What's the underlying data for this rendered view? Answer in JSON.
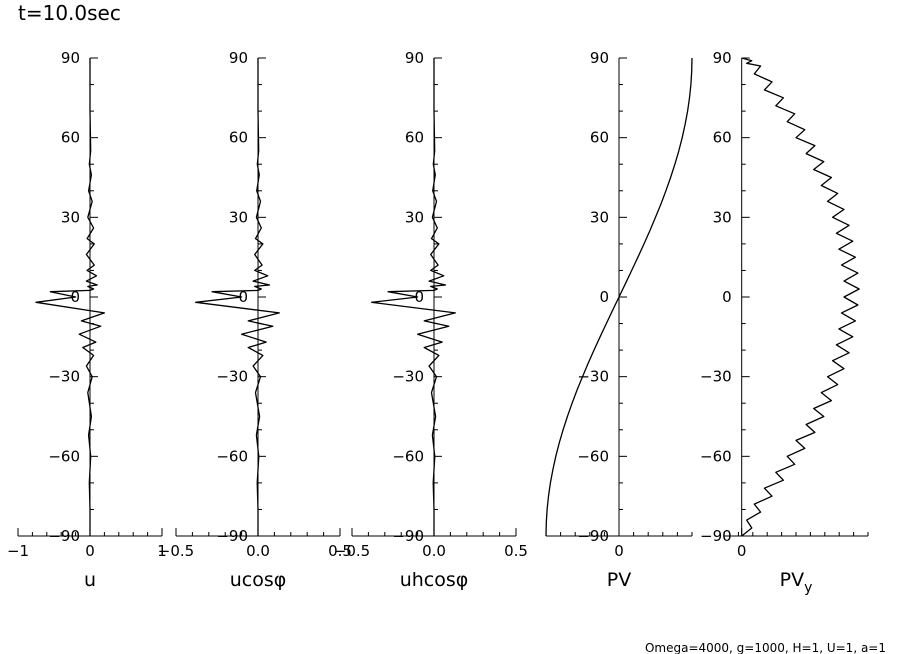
{
  "title": "t=10.0sec",
  "footer": "Omega=4000, g=1000, H=1, U=1, a=1",
  "chart_data": [
    {
      "type": "line",
      "xlabel": "u",
      "xticks": [
        -1,
        0,
        1
      ],
      "xtick_labels": [
        "−1",
        "0",
        "1"
      ],
      "xlim": [
        -1,
        1
      ],
      "ylim": [
        -90,
        90
      ],
      "yticks": [
        90,
        60,
        30,
        0,
        -30,
        -60,
        -90
      ],
      "ytick_labels": [
        "90",
        "60",
        "30",
        "0",
        "−30",
        "−60",
        "−90"
      ],
      "series": [
        {
          "x": [
            0,
            0,
            0.01,
            -0.01,
            0.02,
            -0.02,
            0.03,
            -0.03,
            0.05,
            -0.04,
            0.06,
            -0.05,
            0.06,
            -0.04,
            0.09,
            -0.05,
            0.1,
            -0.03,
            0.05,
            0,
            -0.55,
            -0.2,
            -0.75,
            0.2,
            -0.12,
            0.15,
            -0.15,
            0.08,
            -0.1,
            0.05,
            -0.05,
            0.03,
            -0.03,
            0.02,
            -0.02,
            0.01,
            -0.01,
            0,
            0
          ],
          "y": [
            90,
            70,
            55,
            50,
            46,
            40,
            36,
            30,
            26,
            22,
            20,
            16,
            12,
            10,
            8,
            6,
            4.5,
            4,
            3,
            2.5,
            2,
            0,
            -2,
            -6,
            -9,
            -11,
            -14,
            -17,
            -19,
            -22,
            -26,
            -30,
            -36,
            -45,
            -52,
            -60,
            -70,
            -80,
            -90
          ]
        }
      ]
    },
    {
      "type": "line",
      "xlabel": "ucosφ",
      "xticks": [
        -0.5,
        0,
        0.5
      ],
      "xtick_labels": [
        "−0.5",
        "0.0",
        "0.5"
      ],
      "xlim": [
        -0.5,
        0.5
      ],
      "ylim": [
        -90,
        90
      ],
      "yticks": [
        90,
        60,
        30,
        0,
        -30,
        -60,
        -90
      ],
      "ytick_labels": [
        "90",
        "60",
        "30",
        "0",
        "−30",
        "−60",
        "−90"
      ],
      "series": [
        {
          "x": [
            0,
            0,
            0.004,
            -0.004,
            0.008,
            -0.008,
            0.015,
            -0.01,
            0.02,
            -0.015,
            0.03,
            -0.02,
            0.025,
            -0.02,
            0.06,
            -0.03,
            0.07,
            -0.02,
            0.02,
            0,
            -0.28,
            -0.1,
            -0.38,
            0.13,
            -0.06,
            0.09,
            -0.1,
            0.05,
            -0.06,
            0.03,
            -0.03,
            0.015,
            -0.015,
            0.01,
            -0.01,
            0.005,
            -0.005,
            0,
            0
          ],
          "y": [
            90,
            70,
            55,
            50,
            46,
            40,
            36,
            30,
            26,
            22,
            20,
            16,
            12,
            10,
            8,
            6,
            4.5,
            4,
            3,
            2.5,
            2,
            0,
            -2,
            -6,
            -9,
            -11,
            -14,
            -17,
            -19,
            -22,
            -26,
            -30,
            -36,
            -45,
            -52,
            -60,
            -70,
            -80,
            -90
          ]
        }
      ]
    },
    {
      "type": "line",
      "xlabel": "uhcosφ",
      "xticks": [
        -0.5,
        0,
        0.5
      ],
      "xtick_labels": [
        "−0.5",
        "0.0",
        "0.5"
      ],
      "xlim": [
        -0.5,
        0.5
      ],
      "ylim": [
        -90,
        90
      ],
      "yticks": [
        90,
        60,
        30,
        0,
        -30,
        -60,
        -90
      ],
      "ytick_labels": [
        "90",
        "60",
        "30",
        "0",
        "−30",
        "−60",
        "−90"
      ],
      "series": [
        {
          "x": [
            0,
            0,
            0.004,
            -0.004,
            0.008,
            -0.008,
            0.015,
            -0.01,
            0.02,
            -0.015,
            0.03,
            -0.02,
            0.025,
            -0.02,
            0.06,
            -0.03,
            0.07,
            -0.02,
            0.02,
            0,
            -0.28,
            -0.1,
            -0.38,
            0.13,
            -0.06,
            0.09,
            -0.1,
            0.05,
            -0.06,
            0.03,
            -0.03,
            0.015,
            -0.015,
            0.01,
            -0.01,
            0.005,
            -0.005,
            0,
            0
          ],
          "y": [
            90,
            70,
            55,
            50,
            46,
            40,
            36,
            30,
            26,
            22,
            20,
            16,
            12,
            10,
            8,
            6,
            4.5,
            4,
            3,
            2.5,
            2,
            0,
            -2,
            -6,
            -9,
            -11,
            -14,
            -17,
            -19,
            -22,
            -26,
            -30,
            -36,
            -45,
            -52,
            -60,
            -70,
            -80,
            -90
          ]
        }
      ]
    },
    {
      "type": "line",
      "xlabel": "PV",
      "xticks": [
        0
      ],
      "xtick_labels": [
        "0"
      ],
      "xlim": [
        -1,
        1
      ],
      "ylim": [
        -90,
        90
      ],
      "yticks": [
        90,
        60,
        30,
        0,
        -30,
        -60,
        -90
      ],
      "ytick_labels": [
        "90",
        "60",
        "30",
        "0",
        "−30",
        "−60",
        "−90"
      ],
      "series": [
        {
          "x": [
            -1,
            -0.996,
            -0.985,
            -0.966,
            -0.94,
            -0.906,
            -0.866,
            -0.819,
            -0.766,
            -0.707,
            -0.643,
            -0.574,
            -0.5,
            -0.423,
            -0.342,
            -0.259,
            -0.174,
            -0.087,
            0,
            0.087,
            0.174,
            0.259,
            0.342,
            0.423,
            0.5,
            0.574,
            0.643,
            0.707,
            0.766,
            0.819,
            0.866,
            0.906,
            0.94,
            0.966,
            0.985,
            0.996,
            1
          ],
          "y": [
            -90,
            -85,
            -80,
            -75,
            -70,
            -65,
            -60,
            -55,
            -50,
            -45,
            -40,
            -35,
            -30,
            -25,
            -20,
            -15,
            -10,
            -5,
            0,
            5,
            10,
            15,
            20,
            25,
            30,
            35,
            40,
            45,
            50,
            55,
            60,
            65,
            70,
            75,
            80,
            85,
            90
          ]
        }
      ]
    },
    {
      "type": "line",
      "xlabel": "PV",
      "xlabel_sub": "y",
      "xticks": [
        0
      ],
      "xtick_labels": [
        "0"
      ],
      "xlim": [
        -0.14,
        1
      ],
      "ylim": [
        -90,
        90
      ],
      "yticks": [
        90,
        60,
        30,
        0,
        -30,
        -60,
        -90
      ],
      "ytick_labels": [
        "90",
        "60",
        "30",
        "0",
        "−30",
        "−60",
        "−90"
      ],
      "series": [
        {
          "x": [
            0,
            0.08,
            0.04,
            0.15,
            0.1,
            0.24,
            0.18,
            0.33,
            0.27,
            0.42,
            0.36,
            0.5,
            0.43,
            0.58,
            0.51,
            0.65,
            0.57,
            0.71,
            0.63,
            0.76,
            0.68,
            0.81,
            0.72,
            0.85,
            0.75,
            0.88,
            0.77,
            0.9,
            0.79,
            0.92,
            0.81,
            0.93,
            0.81,
            0.92,
            0.79,
            0.9,
            0.77,
            0.88,
            0.75,
            0.85,
            0.72,
            0.81,
            0.68,
            0.76,
            0.63,
            0.71,
            0.57,
            0.65,
            0.51,
            0.58,
            0.43,
            0.5,
            0.36,
            0.42,
            0.27,
            0.33,
            0.18,
            0.24,
            0.1,
            0.15,
            0.04,
            0.08,
            0
          ],
          "y": [
            -90,
            -87,
            -84,
            -81,
            -78,
            -75,
            -72,
            -69,
            -66,
            -63,
            -60,
            -57,
            -54,
            -51,
            -48,
            -45,
            -42,
            -39,
            -36,
            -33,
            -30,
            -27,
            -24,
            -21,
            -18,
            -15,
            -12,
            -9,
            -6,
            -3,
            0,
            3,
            6,
            9,
            12,
            15,
            18,
            21,
            24,
            27,
            30,
            33,
            36,
            39,
            42,
            45,
            48,
            51,
            54,
            57,
            60,
            63,
            66,
            69,
            72,
            75,
            78,
            81,
            84,
            87,
            88,
            89,
            90
          ]
        }
      ]
    }
  ]
}
